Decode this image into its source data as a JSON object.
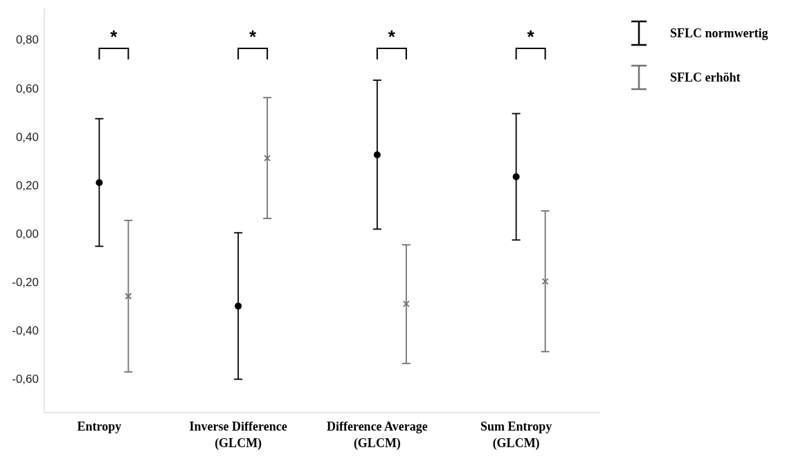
{
  "chart_data": {
    "type": "scatter",
    "categories": [
      "Entropy",
      "Inverse Difference (GLCM)",
      "Difference Average (GLCM)",
      "Sum Entropy (GLCM)"
    ],
    "series": [
      {
        "name": "SFLC normwertig",
        "color": "#000000",
        "marker": "circle",
        "values": [
          0.21,
          -0.3,
          0.325,
          0.234
        ],
        "errors": [
          [
            -0.053,
            0.474
          ],
          [
            0.003,
            -0.602
          ],
          [
            0.018,
            0.633
          ],
          [
            -0.027,
            0.495
          ]
        ]
      },
      {
        "name": "SFLC erhöht",
        "color": "#6e7470",
        "marker": "cross",
        "values": [
          -0.259,
          0.311,
          -0.291,
          -0.198
        ],
        "errors": [
          [
            -0.572,
            0.054
          ],
          [
            0.062,
            0.561
          ],
          [
            -0.537,
            -0.047
          ],
          [
            -0.488,
            0.093
          ]
        ]
      }
    ],
    "ylim": [
      -0.74,
      0.93
    ],
    "yticks": [
      {
        "value": -0.6,
        "label": "-0,60"
      },
      {
        "value": -0.4,
        "label": "-0,40"
      },
      {
        "value": -0.2,
        "label": "-0,20"
      },
      {
        "value": 0,
        "label": "0,00"
      },
      {
        "value": 0.2,
        "label": "0,20"
      },
      {
        "value": 0.4,
        "label": "0,40"
      },
      {
        "value": 0.6,
        "label": "0,60"
      },
      {
        "value": 0.8,
        "label": "0,80"
      }
    ],
    "annotations": [
      "*",
      "*",
      "*",
      "*"
    ],
    "legend": "top right"
  }
}
